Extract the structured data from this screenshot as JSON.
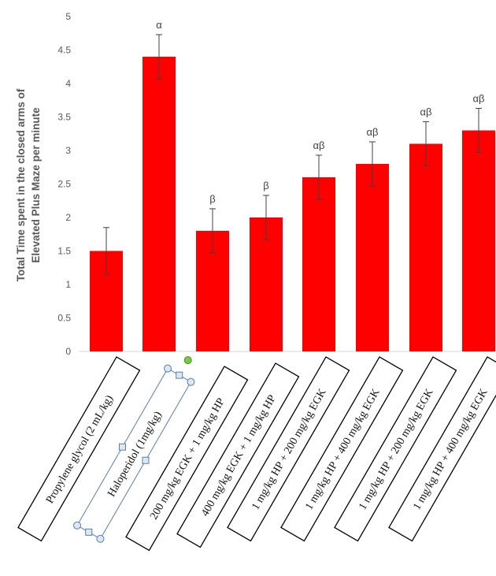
{
  "chart_data": {
    "type": "bar",
    "ylabel": "Total Time spent in the closed arms of Elevated Plus Maze per minute",
    "ylabel_lines": [
      "Total Time spent in the closed arms of",
      "Elevated Plus Maze per minute"
    ],
    "ylim": [
      0,
      5
    ],
    "yticks": [
      "0",
      "0.5",
      "1",
      "1.5",
      "2",
      "2.5",
      "3",
      "3.5",
      "4",
      "4.5",
      "5"
    ],
    "grid": false,
    "bar_color": "#ff0000",
    "categories": [
      "Propylene glycol (2 mL/kg)",
      "Haloperidol (1mg/kg)",
      "200 mg/kg EGK + 1 mg/kg HP",
      "400 mg/kg EGK + 1 mg/kg HP",
      "1 mg/kg HP + 200 mg/kg EGK",
      "1 mg/kg HP + 400 mg/kg EGK",
      "1 mg/kg HP + 200 mg/kg EGK",
      "1 mg/kg HP + 400 mg/kg EGK"
    ],
    "values": [
      1.5,
      4.4,
      1.8,
      2.0,
      2.6,
      2.8,
      3.1,
      3.3
    ],
    "errors": [
      0.35,
      0.33,
      0.33,
      0.33,
      0.33,
      0.33,
      0.33,
      0.33
    ],
    "annotations": [
      "",
      "α",
      "β",
      "β",
      "αβ",
      "αβ",
      "αβ",
      "αβ"
    ]
  }
}
